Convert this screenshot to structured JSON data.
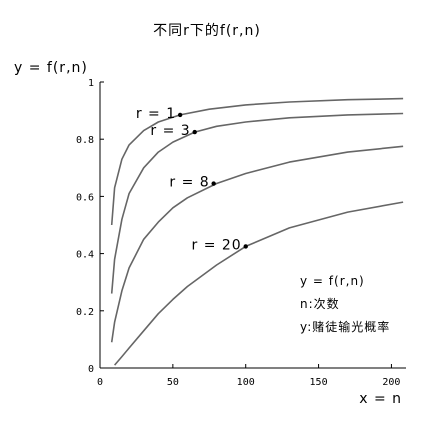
{
  "chart_data": {
    "type": "line",
    "title": "不同r下的f(r,n)",
    "xlabel": "x = n",
    "ylabel": "y = f(r,n)",
    "xlim": [
      0,
      210
    ],
    "ylim": [
      0,
      1
    ],
    "xticks": [
      "0",
      "50",
      "100",
      "150",
      "200"
    ],
    "yticks": [
      "0",
      "0.2",
      "0.4",
      "0.6",
      "0.8",
      "1"
    ],
    "grid": false,
    "series": [
      {
        "name": "r = 1",
        "x": [
          8,
          10,
          15,
          20,
          30,
          40,
          55,
          75,
          100,
          130,
          170,
          208
        ],
        "y": [
          0.5,
          0.63,
          0.73,
          0.78,
          0.83,
          0.86,
          0.885,
          0.905,
          0.92,
          0.93,
          0.938,
          0.942
        ]
      },
      {
        "name": "r = 3",
        "x": [
          8,
          10,
          15,
          20,
          30,
          40,
          50,
          65,
          80,
          100,
          130,
          170,
          208
        ],
        "y": [
          0.26,
          0.38,
          0.52,
          0.61,
          0.7,
          0.755,
          0.79,
          0.825,
          0.845,
          0.86,
          0.875,
          0.885,
          0.89
        ]
      },
      {
        "name": "r = 8",
        "x": [
          8,
          10,
          15,
          20,
          30,
          40,
          50,
          60,
          80,
          100,
          130,
          170,
          208
        ],
        "y": [
          0.09,
          0.16,
          0.27,
          0.35,
          0.45,
          0.51,
          0.56,
          0.595,
          0.645,
          0.68,
          0.72,
          0.755,
          0.775
        ]
      },
      {
        "name": "r = 20",
        "x": [
          10,
          15,
          20,
          30,
          40,
          50,
          60,
          80,
          100,
          130,
          170,
          208
        ],
        "y": [
          0.01,
          0.04,
          0.07,
          0.13,
          0.19,
          0.24,
          0.285,
          0.36,
          0.425,
          0.49,
          0.545,
          0.58
        ]
      }
    ],
    "markers": [
      {
        "label": "r = 1",
        "x": 55,
        "y": 0.885
      },
      {
        "label": "r = 3",
        "x": 65,
        "y": 0.825
      },
      {
        "label": "r = 8",
        "x": 78,
        "y": 0.645
      },
      {
        "label": "r = 20",
        "x": 100,
        "y": 0.425
      }
    ],
    "annotations": [
      "y = f(r,n)",
      "n:次数",
      "y:赌徒输光概率"
    ]
  }
}
